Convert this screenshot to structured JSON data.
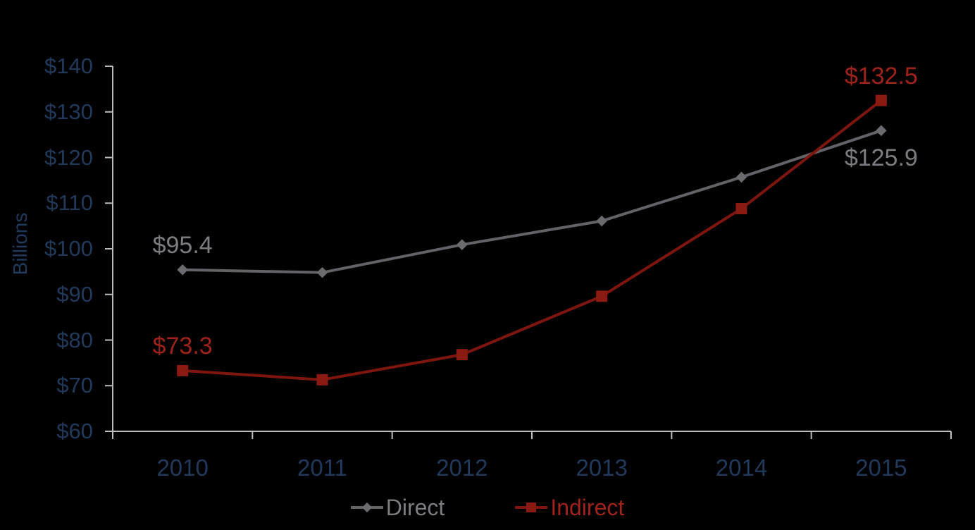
{
  "chart_data": {
    "type": "line",
    "title": "",
    "xlabel": "",
    "ylabel": "Billions",
    "categories": [
      "2010",
      "2011",
      "2012",
      "2013",
      "2014",
      "2015"
    ],
    "series": [
      {
        "name": "Direct",
        "marker": "diamond",
        "values": [
          95.4,
          94.8,
          100.9,
          106.1,
          115.7,
          125.9
        ],
        "line_color": "#626267",
        "marker_color": "#6a6a6f",
        "label_color": "#7c7c81"
      },
      {
        "name": "Indirect",
        "marker": "square",
        "values": [
          73.3,
          71.3,
          76.8,
          89.6,
          108.8,
          132.5
        ],
        "line_color": "#7e150e",
        "marker_color": "#8a1a12",
        "label_color": "#9f231b"
      }
    ],
    "annotations": [
      {
        "series": 0,
        "index": 0,
        "text": "$95.4",
        "placement": "above"
      },
      {
        "series": 0,
        "index": 5,
        "text": "$125.9",
        "placement": "below"
      },
      {
        "series": 1,
        "index": 0,
        "text": "$73.3",
        "placement": "above"
      },
      {
        "series": 1,
        "index": 5,
        "text": "$132.5",
        "placement": "above"
      }
    ],
    "y_axis": {
      "min": 60,
      "max": 140,
      "step": 10,
      "tick_labels": [
        "$60",
        "$70",
        "$80",
        "$90",
        "$100",
        "$110",
        "$120",
        "$130",
        "$140"
      ]
    },
    "legend": {
      "position": "bottom",
      "entries": [
        "Direct",
        "Indirect"
      ]
    },
    "colors": {
      "background": "#000000",
      "axis": "#bdbdbd",
      "axis_text": "#21395a"
    },
    "grid": false,
    "ylim": [
      60,
      140
    ]
  }
}
